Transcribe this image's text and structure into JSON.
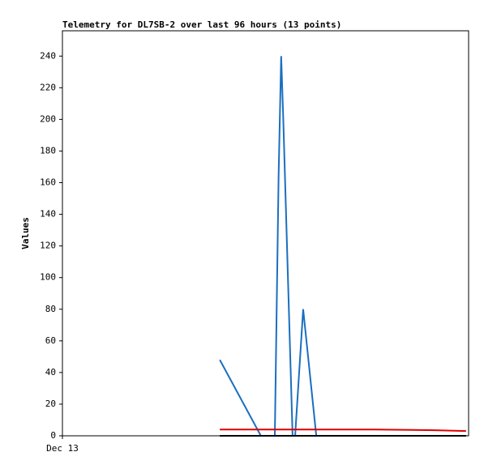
{
  "chart_data": {
    "type": "line",
    "title": "Telemetry for DL7SB-2 over last 96 hours (13 points)",
    "y_label": "Values",
    "x": [
      37.2,
      46.9,
      50.2,
      51.1,
      51.7,
      52.2,
      54.4,
      55.0,
      56.9,
      60.0,
      73.6,
      88.0,
      95.4
    ],
    "series": [
      {
        "color": "#1a6fc0",
        "values": [
          48,
          0,
          0,
          165,
          240,
          200,
          0,
          0,
          80,
          0,
          null,
          null,
          null
        ]
      },
      {
        "color": "#e00000",
        "values": [
          4,
          4,
          4,
          4,
          4,
          4,
          4,
          4,
          4,
          4,
          4,
          3.5,
          3
        ]
      },
      {
        "color": "#000000",
        "values": [
          0,
          0,
          0,
          0,
          0,
          0,
          0,
          0,
          0,
          0,
          0,
          0,
          0
        ]
      }
    ],
    "xlim": [
      0,
      96
    ],
    "xticks": [
      {
        "value": 0,
        "label": "Dec 13"
      }
    ],
    "ylim": [
      0,
      256
    ],
    "yticks": [
      0,
      20,
      40,
      60,
      80,
      100,
      120,
      140,
      160,
      180,
      200,
      220,
      240
    ]
  }
}
